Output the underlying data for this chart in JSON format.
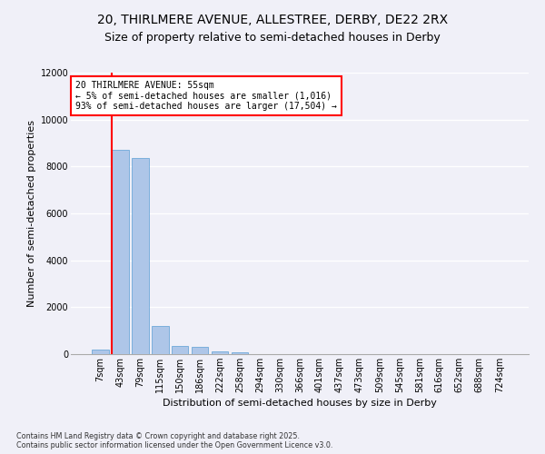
{
  "title_line1": "20, THIRLMERE AVENUE, ALLESTREE, DERBY, DE22 2RX",
  "title_line2": "Size of property relative to semi-detached houses in Derby",
  "xlabel": "Distribution of semi-detached houses by size in Derby",
  "ylabel": "Number of semi-detached properties",
  "footnote": "Contains HM Land Registry data © Crown copyright and database right 2025.\nContains public sector information licensed under the Open Government Licence v3.0.",
  "categories": [
    "7sqm",
    "43sqm",
    "79sqm",
    "115sqm",
    "150sqm",
    "186sqm",
    "222sqm",
    "258sqm",
    "294sqm",
    "330sqm",
    "366sqm",
    "401sqm",
    "437sqm",
    "473sqm",
    "509sqm",
    "545sqm",
    "581sqm",
    "616sqm",
    "652sqm",
    "688sqm",
    "724sqm"
  ],
  "values": [
    200,
    8700,
    8350,
    1200,
    350,
    300,
    100,
    80,
    0,
    0,
    0,
    0,
    0,
    0,
    0,
    0,
    0,
    0,
    0,
    0,
    0
  ],
  "bar_color": "#aec6e8",
  "bar_edge_color": "#5a9fd4",
  "vline_color": "red",
  "annotation_title": "20 THIRLMERE AVENUE: 55sqm",
  "annotation_line2": "← 5% of semi-detached houses are smaller (1,016)",
  "annotation_line3": "93% of semi-detached houses are larger (17,504) →",
  "ylim": [
    0,
    12000
  ],
  "yticks": [
    0,
    2000,
    4000,
    6000,
    8000,
    10000,
    12000
  ],
  "background_color": "#f0f0f8",
  "grid_color": "#ffffff",
  "title_fontsize": 10,
  "subtitle_fontsize": 9,
  "axis_fontsize": 8,
  "tick_fontsize": 7
}
